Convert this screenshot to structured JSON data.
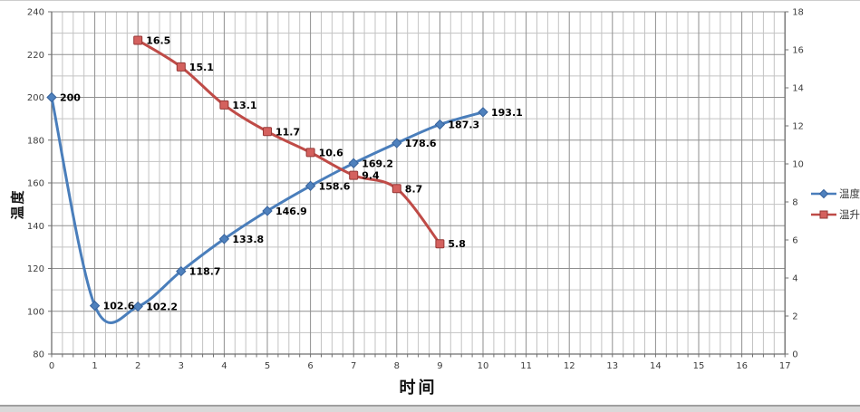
{
  "window": {
    "background": "#ffffff",
    "top_border_color": "#cdcdcd",
    "bottom_band_color": "#d9d9d9",
    "bottom_band_border": "#9f9f9f"
  },
  "chart_data": {
    "type": "line",
    "x_axis": {
      "title": "时间",
      "min": 0,
      "max": 17,
      "major_unit": 1,
      "minor_unit": 0.25,
      "tick_labels": [
        "0",
        "1",
        "2",
        "3",
        "4",
        "5",
        "6",
        "7",
        "8",
        "9",
        "10",
        "11",
        "12",
        "13",
        "14",
        "15",
        "16",
        "17"
      ]
    },
    "y_axis_left": {
      "title": "温度",
      "min": 80,
      "max": 240,
      "major_unit": 20,
      "minor_unit": 10,
      "tick_labels": [
        "80",
        "100",
        "120",
        "140",
        "160",
        "180",
        "200",
        "220",
        "240"
      ]
    },
    "y_axis_right": {
      "min": 0,
      "max": 18,
      "major_unit": 2,
      "tick_labels": [
        "0",
        "2",
        "4",
        "6",
        "8",
        "10",
        "12",
        "14",
        "16",
        "18"
      ]
    },
    "grid": {
      "major_color": "#8f8f8f",
      "minor_color": "#c3c3c3",
      "axis_color": "#6f6f6f",
      "tick_label_color": "#3d3d3d",
      "data_label_color": "#000000"
    },
    "series": [
      {
        "name": "温度",
        "axis": "left",
        "marker": "diamond",
        "line_color": "#4a7ebb",
        "marker_fill": "#4f81bd",
        "marker_stroke": "#36629c",
        "x": [
          0,
          1,
          2,
          3,
          4,
          5,
          6,
          7,
          8,
          9,
          10
        ],
        "values": [
          200,
          102.6,
          102.2,
          118.7,
          133.8,
          146.9,
          158.6,
          169.2,
          178.6,
          187.3,
          193.1
        ],
        "labels": [
          "200",
          "102.6",
          "102.2",
          "118.7",
          "133.8",
          "146.9",
          "158.6",
          "169.2",
          "178.6",
          "187.3",
          "193.1"
        ]
      },
      {
        "name": "温升",
        "axis": "right",
        "marker": "square",
        "line_color": "#bf4b47",
        "marker_fill": "#d4615e",
        "marker_stroke": "#953735",
        "x": [
          2,
          3,
          4,
          5,
          6,
          7,
          8,
          9
        ],
        "values": [
          16.5,
          15.1,
          13.1,
          11.7,
          10.6,
          9.4,
          8.7,
          5.8
        ],
        "labels": [
          "16.5",
          "15.1",
          "13.1",
          "11.7",
          "10.6",
          "9.4",
          "8.7",
          "5.8"
        ]
      }
    ],
    "legend": {
      "position": "right",
      "entries": [
        "温度",
        "温升"
      ]
    }
  }
}
